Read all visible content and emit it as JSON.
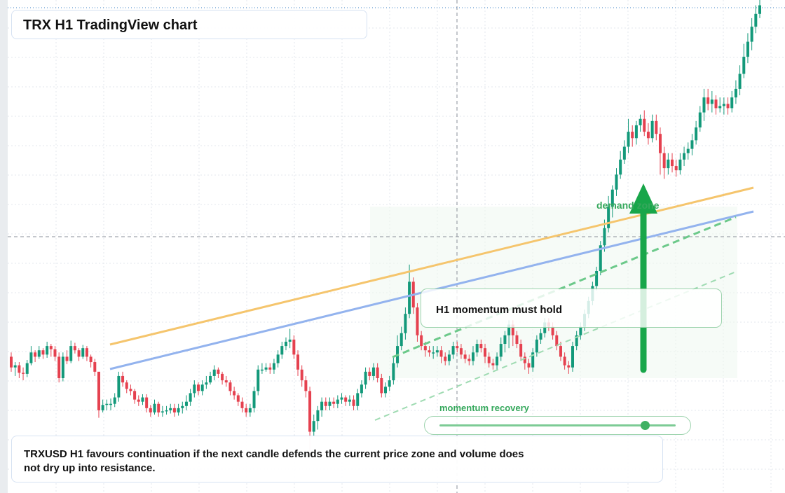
{
  "header": {
    "title": "TRX H1 TradingView chart"
  },
  "panel": {
    "momentum_text": "H1 momentum must hold"
  },
  "indicator": {
    "label": "momentum recovery",
    "level": 0.87
  },
  "zone": {
    "label": "demand zone"
  },
  "note": {
    "text": "TRXUSD H1 favours continuation if the next candle defends the current price zone and volume does not dry up into resistance."
  },
  "colors": {
    "up": "#13997a",
    "down": "#e5414f",
    "orange_line": "#f5c56d",
    "blue_line": "#93b3ee",
    "trend_green": "#6cc98a",
    "arrow": "#18a64a",
    "zone_fill": "#eef8f1"
  },
  "chart_data": {
    "type": "candlestick",
    "symbol": "TRXUSD",
    "timeframe": "H1",
    "grid": true,
    "candles": [
      [
        20,
        10,
        24,
        6
      ],
      [
        10,
        12,
        15,
        2
      ],
      [
        12,
        5,
        15,
        0
      ],
      [
        5,
        4,
        10,
        -2
      ],
      [
        4,
        14,
        17,
        1
      ],
      [
        14,
        24,
        30,
        12
      ],
      [
        24,
        20,
        26,
        15
      ],
      [
        20,
        26,
        30,
        18
      ],
      [
        26,
        22,
        28,
        18
      ],
      [
        22,
        30,
        34,
        19
      ],
      [
        30,
        27,
        32,
        20
      ],
      [
        27,
        20,
        30,
        16
      ],
      [
        20,
        0,
        24,
        -4
      ],
      [
        0,
        20,
        24,
        -3
      ],
      [
        20,
        16,
        26,
        13
      ],
      [
        16,
        30,
        35,
        14
      ],
      [
        30,
        26,
        33,
        23
      ],
      [
        26,
        20,
        28,
        16
      ],
      [
        20,
        28,
        31,
        18
      ],
      [
        28,
        20,
        30,
        16
      ],
      [
        20,
        15,
        22,
        10
      ],
      [
        15,
        6,
        18,
        2
      ],
      [
        6,
        -30,
        -3,
        -37
      ],
      [
        -30,
        -25,
        -20,
        -32
      ],
      [
        -25,
        -24,
        -20,
        -30
      ],
      [
        -24,
        -24,
        -19,
        -30
      ],
      [
        -24,
        -18,
        -14,
        -27
      ],
      [
        -18,
        2,
        6,
        -22
      ],
      [
        2,
        -4,
        6,
        -8
      ],
      [
        -4,
        -10,
        -2,
        -14
      ],
      [
        -10,
        -12,
        -6,
        -16
      ],
      [
        -12,
        -20,
        -10,
        -24
      ],
      [
        -20,
        -22,
        -16,
        -26
      ],
      [
        -22,
        -18,
        -15,
        -25
      ],
      [
        -18,
        -28,
        -15,
        -32
      ],
      [
        -28,
        -32,
        -25,
        -36
      ],
      [
        -32,
        -24,
        -20,
        -34
      ],
      [
        -24,
        -32,
        -22,
        -36
      ],
      [
        -32,
        -31,
        -26,
        -36
      ],
      [
        -31,
        -30,
        -26,
        -34
      ],
      [
        -30,
        -28,
        -24,
        -33
      ],
      [
        -28,
        -32,
        -24,
        -36
      ],
      [
        -32,
        -28,
        -24,
        -35
      ],
      [
        -28,
        -26,
        -22,
        -33
      ],
      [
        -26,
        -22,
        -16,
        -30
      ],
      [
        -22,
        -14,
        -10,
        -26
      ],
      [
        -14,
        -6,
        -2,
        -18
      ],
      [
        -6,
        -12,
        -4,
        -16
      ],
      [
        -12,
        -6,
        -2,
        -16
      ],
      [
        -6,
        -4,
        2,
        -10
      ],
      [
        -4,
        2,
        6,
        -6
      ],
      [
        2,
        8,
        12,
        -2
      ],
      [
        8,
        4,
        10,
        0
      ],
      [
        4,
        -2,
        6,
        -6
      ],
      [
        -2,
        -4,
        2,
        -8
      ],
      [
        -4,
        -12,
        -2,
        -16
      ],
      [
        -12,
        -16,
        -8,
        -20
      ],
      [
        -16,
        -22,
        -14,
        -26
      ],
      [
        -22,
        -28,
        -18,
        -32
      ],
      [
        -28,
        -32,
        -24,
        -36
      ],
      [
        -32,
        -28,
        -24,
        -36
      ],
      [
        -28,
        -12,
        -8,
        -32
      ],
      [
        -12,
        8,
        12,
        -16
      ],
      [
        8,
        8,
        14,
        4
      ],
      [
        8,
        10,
        14,
        6
      ],
      [
        10,
        8,
        14,
        4
      ],
      [
        8,
        14,
        18,
        4
      ],
      [
        14,
        22,
        26,
        10
      ],
      [
        22,
        30,
        34,
        18
      ],
      [
        30,
        34,
        38,
        26
      ],
      [
        34,
        36,
        46,
        28
      ],
      [
        36,
        22,
        40,
        18
      ],
      [
        22,
        8,
        26,
        2
      ],
      [
        8,
        -2,
        12,
        -8
      ],
      [
        -2,
        -12,
        2,
        -18
      ],
      [
        -12,
        -50,
        -8,
        -70
      ],
      [
        -50,
        -40,
        -34,
        -54
      ],
      [
        -40,
        -30,
        -26,
        -48
      ],
      [
        -30,
        -22,
        -18,
        -36
      ],
      [
        -22,
        -26,
        -18,
        -30
      ],
      [
        -26,
        -22,
        -18,
        -30
      ],
      [
        -22,
        -24,
        -18,
        -28
      ],
      [
        -24,
        -20,
        -16,
        -28
      ],
      [
        -20,
        -18,
        -14,
        -24
      ],
      [
        -18,
        -22,
        -16,
        -26
      ],
      [
        -22,
        -20,
        -16,
        -26
      ],
      [
        -20,
        -26,
        -16,
        -30
      ],
      [
        -26,
        -14,
        -10,
        -30
      ],
      [
        -14,
        -6,
        -2,
        -18
      ],
      [
        -6,
        6,
        10,
        -10
      ],
      [
        6,
        2,
        10,
        -2
      ],
      [
        2,
        10,
        14,
        -2
      ],
      [
        10,
        0,
        14,
        -4
      ],
      [
        0,
        -14,
        4,
        -18
      ],
      [
        -14,
        -8,
        -4,
        -18
      ],
      [
        -8,
        -2,
        2,
        -12
      ],
      [
        -2,
        14,
        20,
        -6
      ],
      [
        14,
        30,
        40,
        10
      ],
      [
        30,
        42,
        48,
        26
      ],
      [
        42,
        60,
        66,
        36
      ],
      [
        60,
        90,
        106,
        56
      ],
      [
        90,
        66,
        94,
        60
      ],
      [
        66,
        40,
        70,
        34
      ],
      [
        40,
        30,
        44,
        26
      ],
      [
        30,
        26,
        34,
        20
      ],
      [
        26,
        24,
        30,
        20
      ],
      [
        24,
        24,
        30,
        18
      ],
      [
        24,
        26,
        30,
        20
      ],
      [
        26,
        20,
        30,
        14
      ],
      [
        20,
        16,
        24,
        12
      ],
      [
        16,
        22,
        26,
        12
      ],
      [
        22,
        30,
        34,
        18
      ],
      [
        30,
        28,
        34,
        24
      ],
      [
        28,
        22,
        32,
        18
      ],
      [
        22,
        18,
        26,
        14
      ],
      [
        18,
        16,
        22,
        12
      ],
      [
        16,
        24,
        30,
        12
      ],
      [
        24,
        32,
        36,
        20
      ],
      [
        32,
        28,
        36,
        24
      ],
      [
        28,
        20,
        32,
        14
      ],
      [
        20,
        14,
        24,
        10
      ],
      [
        14,
        12,
        18,
        8
      ],
      [
        12,
        20,
        24,
        8
      ],
      [
        20,
        32,
        38,
        16
      ],
      [
        32,
        40,
        44,
        24
      ],
      [
        40,
        50,
        54,
        28
      ],
      [
        50,
        40,
        54,
        30
      ],
      [
        40,
        32,
        44,
        28
      ],
      [
        32,
        20,
        36,
        16
      ],
      [
        20,
        14,
        24,
        8
      ],
      [
        14,
        10,
        18,
        4
      ],
      [
        10,
        24,
        28,
        6
      ],
      [
        24,
        36,
        40,
        20
      ],
      [
        36,
        42,
        46,
        32
      ],
      [
        42,
        52,
        56,
        38
      ],
      [
        52,
        48,
        56,
        44
      ],
      [
        48,
        40,
        52,
        36
      ],
      [
        40,
        30,
        44,
        26
      ],
      [
        30,
        20,
        34,
        16
      ],
      [
        20,
        12,
        24,
        8
      ],
      [
        12,
        10,
        16,
        4
      ],
      [
        10,
        30,
        34,
        6
      ],
      [
        30,
        40,
        44,
        26
      ],
      [
        40,
        48,
        52,
        36
      ],
      [
        48,
        60,
        64,
        44
      ],
      [
        60,
        72,
        76,
        56
      ],
      [
        72,
        86,
        90,
        68
      ],
      [
        86,
        100,
        104,
        82
      ],
      [
        100,
        124,
        128,
        96
      ],
      [
        124,
        140,
        148,
        118
      ],
      [
        140,
        160,
        170,
        136
      ],
      [
        160,
        176,
        180,
        150
      ],
      [
        176,
        190,
        196,
        170
      ],
      [
        190,
        204,
        212,
        186
      ],
      [
        204,
        216,
        222,
        200
      ],
      [
        216,
        230,
        242,
        210
      ],
      [
        230,
        224,
        236,
        216
      ],
      [
        224,
        236,
        240,
        218
      ],
      [
        236,
        242,
        246,
        230
      ],
      [
        242,
        230,
        250,
        226
      ],
      [
        230,
        224,
        238,
        218
      ],
      [
        224,
        240,
        246,
        220
      ],
      [
        240,
        228,
        246,
        222
      ],
      [
        228,
        210,
        234,
        190
      ],
      [
        210,
        196,
        216,
        186
      ],
      [
        196,
        204,
        210,
        190
      ],
      [
        204,
        198,
        210,
        192
      ],
      [
        198,
        194,
        204,
        188
      ],
      [
        194,
        204,
        210,
        190
      ],
      [
        204,
        210,
        216,
        198
      ],
      [
        210,
        214,
        220,
        204
      ],
      [
        214,
        222,
        228,
        208
      ],
      [
        222,
        234,
        240,
        218
      ],
      [
        234,
        248,
        254,
        230
      ],
      [
        248,
        262,
        270,
        240
      ],
      [
        262,
        256,
        270,
        250
      ],
      [
        256,
        260,
        268,
        248
      ],
      [
        260,
        252,
        264,
        246
      ],
      [
        252,
        254,
        262,
        248
      ],
      [
        254,
        256,
        262,
        246
      ],
      [
        256,
        252,
        262,
        246
      ],
      [
        252,
        262,
        268,
        248
      ],
      [
        262,
        270,
        278,
        256
      ],
      [
        270,
        284,
        292,
        264
      ],
      [
        284,
        300,
        312,
        280
      ],
      [
        300,
        314,
        322,
        294
      ],
      [
        314,
        328,
        336,
        306
      ],
      [
        328,
        340,
        348,
        322
      ],
      [
        340,
        348,
        354,
        336
      ]
    ],
    "overlay_lines": [
      {
        "name": "",
        "color": "orange",
        "from": [
          0,
          60
        ],
        "to": [
          1,
          248
        ]
      },
      {
        "name": "",
        "color": "blue",
        "from": [
          0,
          40
        ],
        "to": [
          1,
          224
        ]
      }
    ]
  }
}
